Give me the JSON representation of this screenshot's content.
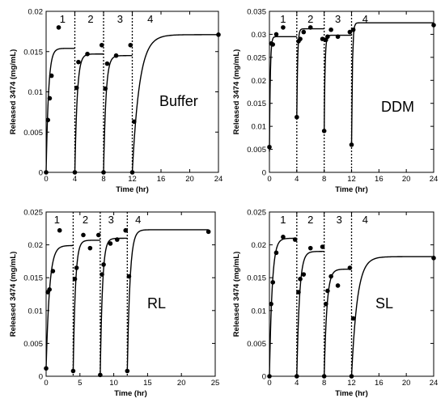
{
  "chart_data": [
    {
      "type": "scatter",
      "panel_label": "Buffer",
      "xlabel": "Time (hr)",
      "ylabel": "Released 3474 (mg/mL)",
      "xlim": [
        0,
        24
      ],
      "ylim": [
        0,
        0.02
      ],
      "x_ticks": [
        "0",
        "4",
        "8",
        "12",
        "16",
        "20",
        "24"
      ],
      "y_ticks": [
        "0",
        "0.005",
        "0.01",
        "0.015",
        "0.02"
      ],
      "dividers": [
        4,
        8,
        12
      ],
      "region_labels": [
        "1",
        "2",
        "3",
        "4"
      ],
      "region_label_x": [
        2.3,
        6.2,
        10.3,
        14.5
      ],
      "points": [
        [
          0,
          0
        ],
        [
          0.25,
          0.0065
        ],
        [
          0.5,
          0.0092
        ],
        [
          0.75,
          0.012
        ],
        [
          1.75,
          0.018
        ],
        [
          4.0,
          0
        ],
        [
          4.25,
          0.0105
        ],
        [
          4.5,
          0.0137
        ],
        [
          5.75,
          0.0147
        ],
        [
          7.75,
          0.0158
        ],
        [
          8.0,
          0
        ],
        [
          8.25,
          0.0104
        ],
        [
          8.5,
          0.0135
        ],
        [
          9.75,
          0.0145
        ],
        [
          11.75,
          0.0158
        ],
        [
          12.0,
          0
        ],
        [
          12.25,
          0.0063
        ],
        [
          24.0,
          0.0171
        ]
      ],
      "fit_segments": [
        {
          "x0": 0,
          "x1": 4,
          "y0": 0,
          "ymax": 0.0154,
          "k": 3.0
        },
        {
          "x0": 4,
          "x1": 8,
          "y0": 0,
          "ymax": 0.0147,
          "k": 3.0
        },
        {
          "x0": 8,
          "x1": 12,
          "y0": 0,
          "ymax": 0.0145,
          "k": 3.0
        },
        {
          "x0": 12,
          "x1": 24,
          "y0": 0,
          "ymax": 0.0171,
          "k": 1.0
        }
      ]
    },
    {
      "type": "scatter",
      "panel_label": "DDM",
      "xlabel": "Time (hr)",
      "ylabel": "Released 3474 (mg/mL)",
      "xlim": [
        0,
        24
      ],
      "ylim": [
        0,
        0.035
      ],
      "x_ticks": [
        "0",
        "4",
        "8",
        "12",
        "16",
        "20",
        "24"
      ],
      "y_ticks": [
        "0",
        "0.005",
        "0.01",
        "0.015",
        "0.02",
        "0.025",
        "0.03",
        "0.035"
      ],
      "dividers": [
        4,
        8,
        12
      ],
      "region_labels": [
        "1",
        "2",
        "3",
        "4"
      ],
      "region_label_x": [
        2.0,
        6.0,
        10.0,
        14.0
      ],
      "points": [
        [
          0,
          0.0055
        ],
        [
          0.25,
          0.028
        ],
        [
          0.5,
          0.0278
        ],
        [
          1.0,
          0.03
        ],
        [
          2.0,
          0.0315
        ],
        [
          4.0,
          0.012
        ],
        [
          4.25,
          0.0285
        ],
        [
          4.5,
          0.029
        ],
        [
          5.0,
          0.0305
        ],
        [
          6.0,
          0.0315
        ],
        [
          7.75,
          0.029
        ],
        [
          8.0,
          0.009
        ],
        [
          8.25,
          0.0288
        ],
        [
          8.5,
          0.0295
        ],
        [
          9.0,
          0.031
        ],
        [
          10.0,
          0.0295
        ],
        [
          11.75,
          0.0305
        ],
        [
          12.0,
          0.006
        ],
        [
          12.25,
          0.031
        ],
        [
          24.0,
          0.032
        ]
      ],
      "fit_segments": [
        {
          "x0": 0,
          "x1": 4,
          "y0": 0.0045,
          "ymax": 0.0295,
          "k": 8.0
        },
        {
          "x0": 4,
          "x1": 8,
          "y0": 0.012,
          "ymax": 0.0312,
          "k": 8.0
        },
        {
          "x0": 8,
          "x1": 12,
          "y0": 0.009,
          "ymax": 0.0298,
          "k": 8.0
        },
        {
          "x0": 12,
          "x1": 24,
          "y0": 0.006,
          "ymax": 0.0325,
          "k": 8.0
        }
      ]
    },
    {
      "type": "scatter",
      "panel_label": "RL",
      "xlabel": "Time (hr)",
      "ylabel": "Released 3474 (mg/mL)",
      "xlim": [
        0,
        25
      ],
      "ylim": [
        0,
        0.025
      ],
      "x_ticks": [
        "0",
        "5",
        "10",
        "15",
        "20",
        "25"
      ],
      "y_ticks": [
        "0",
        "0.005",
        "0.01",
        "0.015",
        "0.02",
        "0.025"
      ],
      "dividers": [
        4,
        8,
        12
      ],
      "region_labels": [
        "1",
        "2",
        "3",
        "4"
      ],
      "region_label_x": [
        1.6,
        5.8,
        9.6,
        13.6
      ],
      "points": [
        [
          0,
          0.0012
        ],
        [
          0.25,
          0.0128
        ],
        [
          0.5,
          0.0132
        ],
        [
          1.0,
          0.016
        ],
        [
          2.0,
          0.0222
        ],
        [
          4.0,
          0.0008
        ],
        [
          4.25,
          0.0148
        ],
        [
          4.5,
          0.0165
        ],
        [
          5.5,
          0.0215
        ],
        [
          6.5,
          0.0195
        ],
        [
          7.75,
          0.0215
        ],
        [
          8.0,
          0.0002
        ],
        [
          8.25,
          0.0155
        ],
        [
          8.5,
          0.017
        ],
        [
          9.5,
          0.0202
        ],
        [
          10.5,
          0.0208
        ],
        [
          11.75,
          0.0222
        ],
        [
          12.0,
          0.0008
        ],
        [
          12.25,
          0.0152
        ],
        [
          24.0,
          0.022
        ]
      ],
      "fit_segments": [
        {
          "x0": 0,
          "x1": 4,
          "y0": 0.0012,
          "ymax": 0.0199,
          "k": 2.0
        },
        {
          "x0": 4,
          "x1": 8,
          "y0": 0.0008,
          "ymax": 0.0207,
          "k": 3.0
        },
        {
          "x0": 8,
          "x1": 12,
          "y0": 0.0002,
          "ymax": 0.021,
          "k": 3.0
        },
        {
          "x0": 12,
          "x1": 24,
          "y0": 0.0008,
          "ymax": 0.0223,
          "k": 2.5
        }
      ]
    },
    {
      "type": "scatter",
      "panel_label": "SL",
      "xlabel": "Time (hr)",
      "ylabel": "Released 3474 (mg/mL)",
      "xlim": [
        0,
        24
      ],
      "ylim": [
        0,
        0.025
      ],
      "x_ticks": [
        "0",
        "4",
        "8",
        "12",
        "16",
        "20",
        "24"
      ],
      "y_ticks": [
        "0",
        "0.005",
        "0.01",
        "0.015",
        "0.02",
        "0.025"
      ],
      "dividers": [
        4,
        8,
        12
      ],
      "region_labels": [
        "1",
        "2",
        "3",
        "4"
      ],
      "region_label_x": [
        2.0,
        6.0,
        10.2,
        14.0
      ],
      "points": [
        [
          0,
          0
        ],
        [
          0.25,
          0.011
        ],
        [
          0.5,
          0.0143
        ],
        [
          1.0,
          0.0188
        ],
        [
          2.0,
          0.0212
        ],
        [
          3.75,
          0.0208
        ],
        [
          4.0,
          0
        ],
        [
          4.25,
          0.0128
        ],
        [
          4.5,
          0.0148
        ],
        [
          5.0,
          0.0155
        ],
        [
          6.0,
          0.0195
        ],
        [
          7.75,
          0.0197
        ],
        [
          8.0,
          0
        ],
        [
          8.25,
          0.011
        ],
        [
          8.5,
          0.013
        ],
        [
          9.0,
          0.0152
        ],
        [
          10.0,
          0.0138
        ],
        [
          11.75,
          0.0165
        ],
        [
          12.0,
          0
        ],
        [
          12.25,
          0.0088
        ],
        [
          24.0,
          0.018
        ]
      ],
      "fit_segments": [
        {
          "x0": 0,
          "x1": 4,
          "y0": 0,
          "ymax": 0.021,
          "k": 2.5
        },
        {
          "x0": 4,
          "x1": 8,
          "y0": 0,
          "ymax": 0.019,
          "k": 2.5
        },
        {
          "x0": 8,
          "x1": 12,
          "y0": 0,
          "ymax": 0.0163,
          "k": 2.5
        },
        {
          "x0": 12,
          "x1": 24,
          "y0": 0,
          "ymax": 0.0182,
          "k": 1.2
        }
      ]
    }
  ]
}
